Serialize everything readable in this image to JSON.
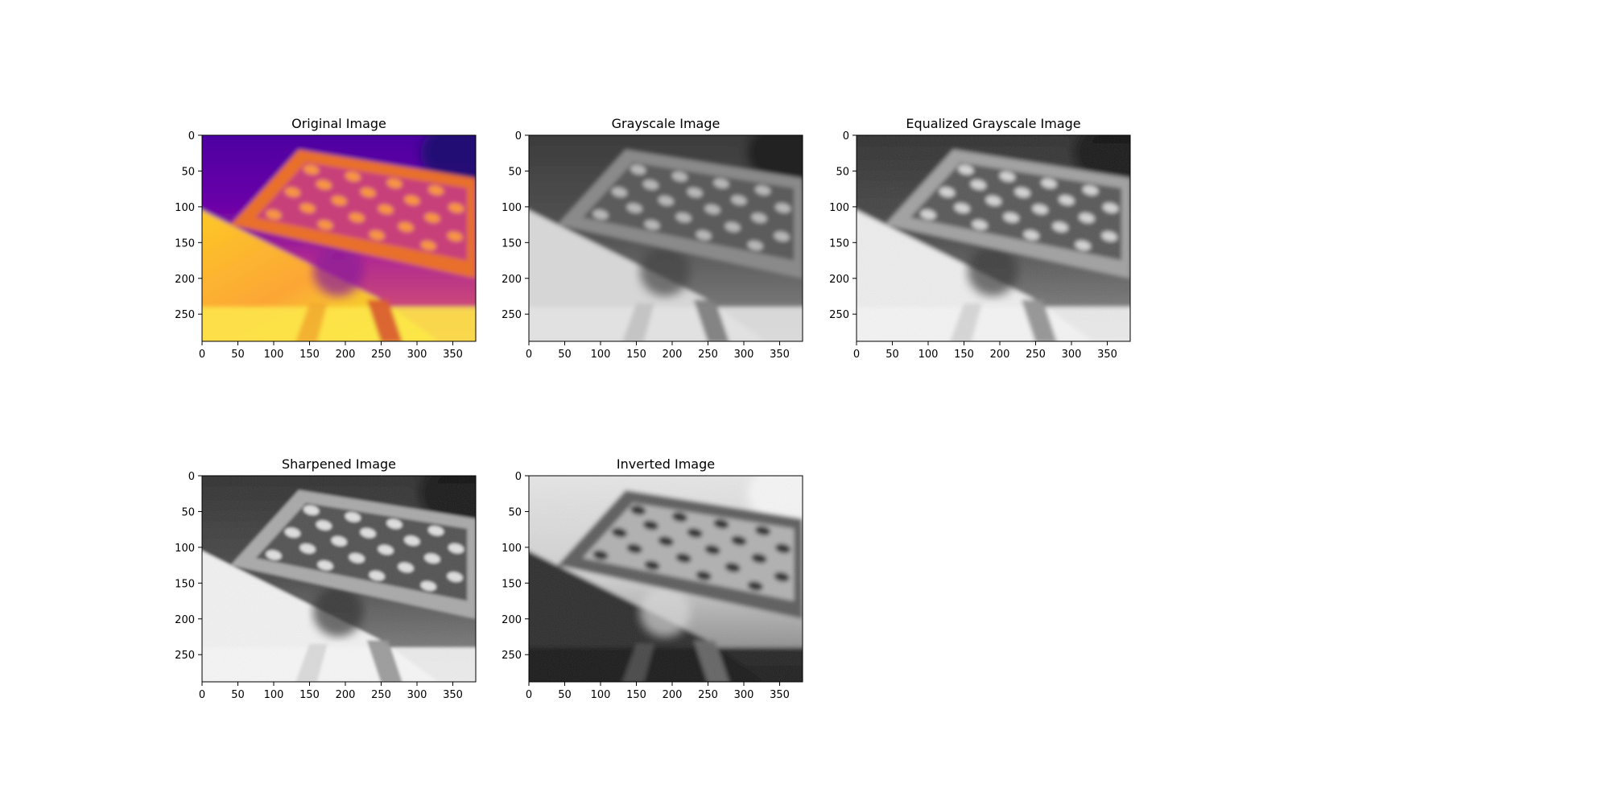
{
  "figure": {
    "panels": [
      {
        "id": "original",
        "title": "Original Image",
        "colormap": "plasma",
        "x_ticks": [
          "0",
          "50",
          "100",
          "150",
          "200",
          "250",
          "300",
          "350"
        ],
        "y_ticks": [
          "0",
          "50",
          "100",
          "150",
          "200",
          "250"
        ]
      },
      {
        "id": "grayscale",
        "title": "Grayscale Image",
        "colormap": "gray",
        "x_ticks": [
          "0",
          "50",
          "100",
          "150",
          "200",
          "250",
          "300",
          "350"
        ],
        "y_ticks": [
          "0",
          "50",
          "100",
          "150",
          "200",
          "250"
        ]
      },
      {
        "id": "equalized",
        "title": "Equalized Grayscale Image",
        "colormap": "gray",
        "x_ticks": [
          "0",
          "50",
          "100",
          "150",
          "200",
          "250",
          "300",
          "350"
        ],
        "y_ticks": [
          "0",
          "50",
          "100",
          "150",
          "200",
          "250"
        ]
      },
      {
        "id": "sharpened",
        "title": "Sharpened Image",
        "colormap": "gray",
        "x_ticks": [
          "0",
          "50",
          "100",
          "150",
          "200",
          "250",
          "300",
          "350"
        ],
        "y_ticks": [
          "0",
          "50",
          "100",
          "150",
          "200",
          "250"
        ]
      },
      {
        "id": "inverted",
        "title": "Inverted Image",
        "colormap": "gray",
        "x_ticks": [
          "0",
          "50",
          "100",
          "150",
          "200",
          "250",
          "300",
          "350"
        ],
        "y_ticks": [
          "0",
          "50",
          "100",
          "150",
          "200",
          "250"
        ]
      }
    ],
    "image_extent": {
      "width": 382,
      "height": 288
    }
  }
}
